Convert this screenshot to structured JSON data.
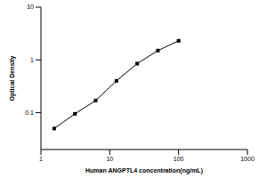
{
  "chart_data": {
    "type": "line",
    "x_label": "Human ANGPTL4 concentration(ng/mL)",
    "y_label": "Optical Density",
    "x": [
      1.56,
      3.12,
      6.25,
      12.5,
      25,
      50,
      100
    ],
    "values": [
      0.05,
      0.095,
      0.17,
      0.4,
      0.85,
      1.5,
      2.3
    ],
    "color": "#000000",
    "marker": "square",
    "line_style": "solid",
    "log": true,
    "xlim": [
      1,
      1000
    ],
    "xticks": [
      1,
      10,
      100,
      1000
    ],
    "ylim": [
      0.02,
      10
    ],
    "yticks": [
      0.1,
      1,
      10
    ],
    "grid": false
  }
}
